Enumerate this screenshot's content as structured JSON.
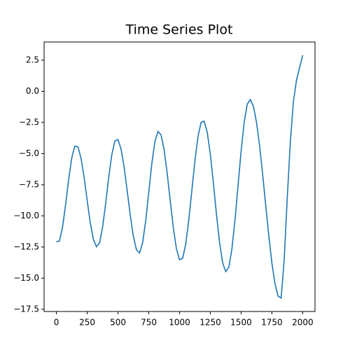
{
  "chart_data": {
    "type": "line",
    "title": "Time Series Plot",
    "color": "#1f77b4",
    "x": [
      0,
      25,
      50,
      75,
      100,
      125,
      150,
      175,
      200,
      225,
      250,
      275,
      300,
      325,
      350,
      375,
      400,
      425,
      450,
      475,
      500,
      525,
      550,
      575,
      600,
      625,
      650,
      675,
      700,
      725,
      750,
      775,
      800,
      825,
      850,
      875,
      900,
      925,
      950,
      975,
      1000,
      1025,
      1050,
      1075,
      1100,
      1125,
      1150,
      1175,
      1200,
      1225,
      1250,
      1275,
      1300,
      1325,
      1350,
      1375,
      1400,
      1425,
      1450,
      1475,
      1500,
      1525,
      1550,
      1575,
      1600,
      1625,
      1650,
      1675,
      1700,
      1725,
      1750,
      1775,
      1800,
      1825,
      1850,
      1875,
      1900,
      1925,
      1950,
      1975,
      2000
    ],
    "values": [
      -12.1,
      -12.01,
      -10.89,
      -9.07,
      -7.03,
      -5.32,
      -4.39,
      -4.46,
      -5.37,
      -6.92,
      -8.78,
      -10.56,
      -11.88,
      -12.48,
      -12.17,
      -10.91,
      -9.0,
      -6.89,
      -5.07,
      -3.99,
      -3.87,
      -4.63,
      -6.1,
      -8.0,
      -9.97,
      -11.65,
      -12.72,
      -12.98,
      -12.17,
      -10.41,
      -8.1,
      -5.79,
      -4.03,
      -3.22,
      -3.51,
      -4.72,
      -6.62,
      -8.85,
      -11.0,
      -12.66,
      -13.52,
      -13.41,
      -12.28,
      -10.34,
      -7.95,
      -5.56,
      -3.62,
      -2.49,
      -2.39,
      -3.29,
      -5.06,
      -7.39,
      -9.89,
      -12.15,
      -13.77,
      -14.48,
      -14.13,
      -12.67,
      -10.36,
      -7.58,
      -4.79,
      -2.48,
      -1.02,
      -0.67,
      -1.21,
      -2.49,
      -4.37,
      -6.68,
      -9.18,
      -11.63,
      -13.79,
      -15.45,
      -16.45,
      -16.6,
      -13.5,
      -8.5,
      -4.0,
      -0.8,
      0.9,
      1.9,
      2.9
    ],
    "xlim": [
      -100,
      2100
    ],
    "xticks": [
      0,
      250,
      500,
      750,
      1000,
      1250,
      1500,
      1750,
      2000
    ],
    "ylim": [
      -17.68,
      3.96
    ],
    "yticks": [
      {
        "value": -17.5,
        "label": "−17.5"
      },
      {
        "value": -15,
        "label": "−15.0"
      },
      {
        "value": -12.5,
        "label": "−12.5"
      },
      {
        "value": -10,
        "label": "−10.0"
      },
      {
        "value": -7.5,
        "label": "−7.5"
      },
      {
        "value": -5,
        "label": "−5.0"
      },
      {
        "value": -2.5,
        "label": "−2.5"
      },
      {
        "value": 0,
        "label": "0.0"
      },
      2.5
    ],
    "grid": false
  }
}
